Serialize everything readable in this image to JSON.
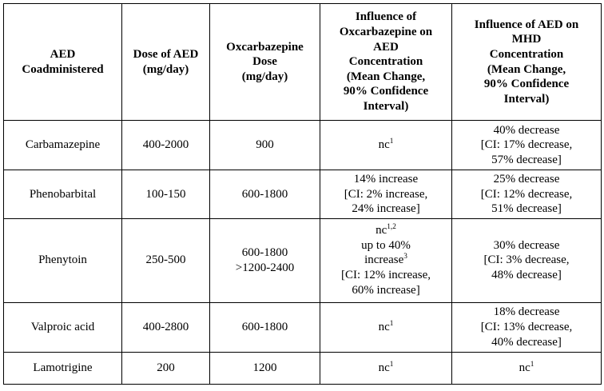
{
  "table": {
    "headers": [
      "AED\nCoadministered",
      "Dose of AED\n(mg/day)",
      "Oxcarbazepine\nDose\n(mg/day)",
      "Influence of\nOxcarbazepine on\nAED\nConcentration\n(Mean Change,\n90% Confidence\nInterval)",
      "Influence of AED on\nMHD\nConcentration\n(Mean Change,\n90% Confidence\nInterval)"
    ],
    "rows": [
      {
        "aed": [
          "Carbamazepine"
        ],
        "aed_dose": [
          "400-2000"
        ],
        "oxc_dose": [
          "900"
        ],
        "influence_on_aed": [
          "nc^1^"
        ],
        "influence_on_mhd": [
          "40% decrease",
          "[CI: 17% decrease,",
          "57% decrease]"
        ]
      },
      {
        "aed": [
          "Phenobarbital"
        ],
        "aed_dose": [
          "100-150"
        ],
        "oxc_dose": [
          "600-1800"
        ],
        "influence_on_aed": [
          "14% increase",
          "[CI: 2% increase,",
          "24% increase]"
        ],
        "influence_on_mhd": [
          "25% decrease",
          "[CI: 12% decrease,",
          "51% decrease]"
        ]
      },
      {
        "aed": [
          "Phenytoin"
        ],
        "aed_dose": [
          "250-500"
        ],
        "oxc_dose": [
          "600-1800",
          ">1200-2400"
        ],
        "influence_on_aed": [
          "nc^1,2^",
          "up to 40%",
          "increase^3^",
          "[CI: 12% increase,",
          "60% increase]"
        ],
        "influence_on_mhd": [
          "30% decrease",
          "[CI: 3% decrease,",
          "48% decrease]"
        ]
      },
      {
        "aed": [
          "Valproic acid"
        ],
        "aed_dose": [
          "400-2800"
        ],
        "oxc_dose": [
          "600-1800"
        ],
        "influence_on_aed": [
          "nc^1^"
        ],
        "influence_on_mhd": [
          "18% decrease",
          "[CI: 13% decrease,",
          "40% decrease]"
        ]
      },
      {
        "aed": [
          "Lamotrigine"
        ],
        "aed_dose": [
          "200"
        ],
        "oxc_dose": [
          "1200"
        ],
        "influence_on_aed": [
          "nc^1^"
        ],
        "influence_on_mhd": [
          "nc^1^"
        ]
      }
    ]
  }
}
